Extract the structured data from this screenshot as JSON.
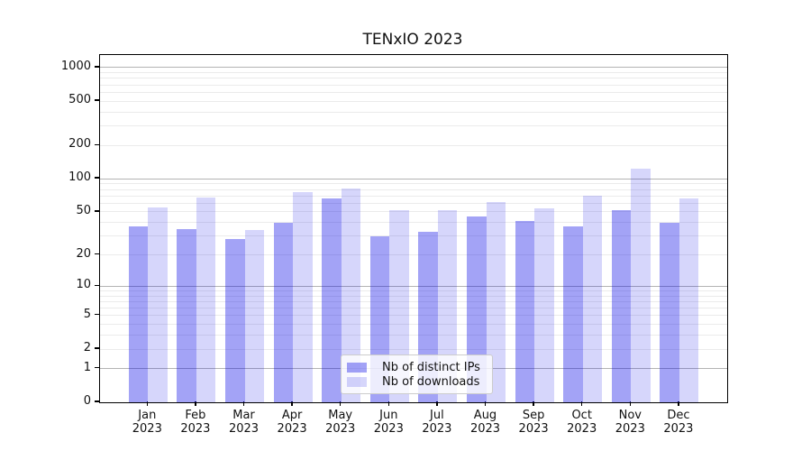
{
  "title": "TENxIO 2023",
  "colors": {
    "bar_base": "#0000e6",
    "distinct_ips_fill": "rgba(0,0,230,0.36)",
    "downloads_fill": "rgba(0,0,230,0.16)",
    "grid_major": "#b3b3b3",
    "grid_minor": "#ebebeb",
    "axis": "#000000",
    "legend_border": "#cccccc"
  },
  "legend": {
    "entries": [
      "Nb of distinct IPs",
      "Nb of downloads"
    ],
    "position": "lower center"
  },
  "chart_data": {
    "type": "bar",
    "title": "TENxIO 2023",
    "categories": [
      "Jan",
      "Feb",
      "Mar",
      "Apr",
      "May",
      "Jun",
      "Jul",
      "Aug",
      "Sep",
      "Oct",
      "Nov",
      "Dec"
    ],
    "year_label": "2023",
    "series": [
      {
        "name": "Nb of distinct IPs",
        "color": "rgba(0,0,230,0.36)",
        "values": [
          37,
          35,
          28,
          40,
          66,
          30,
          33,
          45,
          41,
          37,
          52,
          40
        ]
      },
      {
        "name": "Nb of downloads",
        "color": "rgba(0,0,230,0.16)",
        "values": [
          55,
          67,
          34,
          76,
          82,
          52,
          52,
          61,
          54,
          70,
          123,
          66
        ]
      }
    ],
    "xlabel": "",
    "ylabel": "",
    "yscale": "log1p",
    "y_ticks": [
      0,
      1,
      2,
      5,
      10,
      20,
      50,
      100,
      200,
      500,
      1000
    ],
    "y_minor_grid": [
      2,
      3,
      4,
      5,
      6,
      7,
      8,
      9,
      20,
      30,
      40,
      50,
      60,
      70,
      80,
      90,
      200,
      300,
      400,
      500,
      600,
      700,
      800,
      900
    ],
    "y_major_grid": [
      1,
      10,
      100,
      1000
    ],
    "ylim": [
      0,
      1300
    ],
    "grid": true,
    "legend_position": "lower center"
  }
}
